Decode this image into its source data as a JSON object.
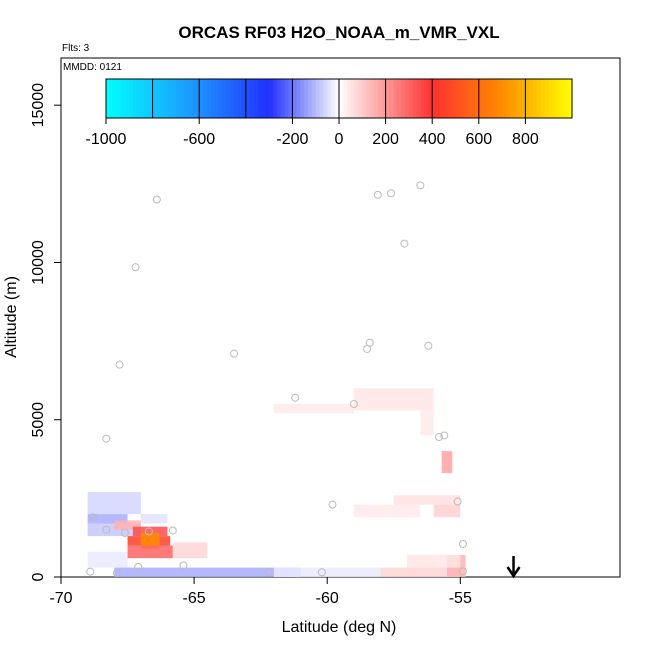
{
  "chart_data": {
    "type": "heatmap",
    "title": "ORCAS RF03 H2O_NOAA_m_VMR_VXL",
    "flights_label": "Flts: 3",
    "date_label": "MMDD: 0121",
    "xlabel": "Latitude (deg N)",
    "ylabel": "Altitude (m)",
    "xlim": [
      -70,
      -49
    ],
    "ylim": [
      0,
      16500
    ],
    "x_ticks": [
      -70,
      -65,
      -60,
      -55
    ],
    "x_tick_labels": [
      "-70",
      "-65",
      "-60",
      "-55"
    ],
    "y_ticks": [
      0,
      5000,
      10000,
      15000
    ],
    "y_tick_labels": [
      "0",
      "5000",
      "10000",
      "15000"
    ],
    "colorbar": {
      "range": [
        -1000,
        1000
      ],
      "ticks": [
        -1000,
        -600,
        -200,
        0,
        200,
        400,
        600,
        800
      ],
      "tick_labels": [
        "-1000",
        "-600",
        "-200",
        "0",
        "200",
        "400",
        "600",
        "800"
      ],
      "boundaries": [
        -1000,
        -800,
        -600,
        -400,
        -200,
        0,
        200,
        400,
        600,
        800,
        1000
      ],
      "colors": {
        "min": "#00ffff",
        "neg_mid": "#1e90ff",
        "neg_strong": "#2030ff",
        "zero": "#ffffff",
        "pos_mid": "#ff3030",
        "pos_strong": "#ff8c00",
        "max": "#ffff00"
      }
    },
    "cells": [
      {
        "x0": -69.0,
        "x1": -67.0,
        "y0": 2000,
        "y1": 2700,
        "v": -60
      },
      {
        "x0": -69.0,
        "x1": -67.5,
        "y0": 1700,
        "y1": 2000,
        "v": -120
      },
      {
        "x0": -69.0,
        "x1": -67.0,
        "y0": 1300,
        "y1": 1700,
        "v": -80
      },
      {
        "x0": -68.0,
        "x1": -67.0,
        "y0": 1500,
        "y1": 1800,
        "v": 150
      },
      {
        "x0": -67.0,
        "x1": -66.0,
        "y0": 1700,
        "y1": 2000,
        "v": -40
      },
      {
        "x0": -67.3,
        "x1": -66.0,
        "y0": 1300,
        "y1": 1600,
        "v": 350
      },
      {
        "x0": -67.5,
        "x1": -65.9,
        "y0": 1000,
        "y1": 1300,
        "v": 450
      },
      {
        "x0": -67.0,
        "x1": -66.3,
        "y0": 900,
        "y1": 1400,
        "v": 700
      },
      {
        "x0": -67.5,
        "x1": -65.8,
        "y0": 600,
        "y1": 1000,
        "v": 300
      },
      {
        "x0": -65.8,
        "x1": -64.5,
        "y0": 600,
        "y1": 1100,
        "v": 80
      },
      {
        "x0": -69.0,
        "x1": -67.5,
        "y0": 300,
        "y1": 800,
        "v": -30
      },
      {
        "x0": -68.0,
        "x1": -61.0,
        "y0": 0,
        "y1": 300,
        "v": -120
      },
      {
        "x0": -62.0,
        "x1": -58.0,
        "y0": 0,
        "y1": 300,
        "v": -30
      },
      {
        "x0": -58.0,
        "x1": -55.0,
        "y0": 0,
        "y1": 300,
        "v": 80
      },
      {
        "x0": -55.5,
        "x1": -54.8,
        "y0": 0,
        "y1": 700,
        "v": 150
      },
      {
        "x0": -57.0,
        "x1": -55.0,
        "y0": 300,
        "y1": 700,
        "v": 50
      },
      {
        "x0": -57.5,
        "x1": -55.0,
        "y0": 2300,
        "y1": 2600,
        "v": 60
      },
      {
        "x0": -56.0,
        "x1": -55.0,
        "y0": 1900,
        "y1": 2300,
        "v": 90
      },
      {
        "x0": -59.0,
        "x1": -56.5,
        "y0": 1900,
        "y1": 2300,
        "v": 40
      },
      {
        "x0": -55.7,
        "x1": -55.3,
        "y0": 3300,
        "y1": 4000,
        "v": 180
      },
      {
        "x0": -62.0,
        "x1": -59.0,
        "y0": 5200,
        "y1": 5500,
        "v": 40
      },
      {
        "x0": -59.0,
        "x1": -56.0,
        "y0": 5300,
        "y1": 6000,
        "v": 50
      },
      {
        "x0": -56.5,
        "x1": -56.0,
        "y0": 4500,
        "y1": 5300,
        "v": 40
      }
    ],
    "points": [
      {
        "x": -68.9,
        "y": 170
      },
      {
        "x": -67.9,
        "y": 130
      },
      {
        "x": -67.1,
        "y": 320
      },
      {
        "x": -68.8,
        "y": 1900
      },
      {
        "x": -68.3,
        "y": 1500
      },
      {
        "x": -67.6,
        "y": 1400
      },
      {
        "x": -66.7,
        "y": 1450
      },
      {
        "x": -65.8,
        "y": 1480
      },
      {
        "x": -65.4,
        "y": 370
      },
      {
        "x": -62.2,
        "y": 150
      },
      {
        "x": -60.2,
        "y": 150
      },
      {
        "x": -59.8,
        "y": 2300
      },
      {
        "x": -55.1,
        "y": 2400
      },
      {
        "x": -54.9,
        "y": 1050
      },
      {
        "x": -54.9,
        "y": 180
      },
      {
        "x": -68.3,
        "y": 4400
      },
      {
        "x": -67.8,
        "y": 6750
      },
      {
        "x": -67.2,
        "y": 9850
      },
      {
        "x": -66.4,
        "y": 12000
      },
      {
        "x": -63.5,
        "y": 7100
      },
      {
        "x": -61.2,
        "y": 5700
      },
      {
        "x": -59.0,
        "y": 5500
      },
      {
        "x": -58.5,
        "y": 7250
      },
      {
        "x": -58.4,
        "y": 7450
      },
      {
        "x": -58.1,
        "y": 12150
      },
      {
        "x": -57.6,
        "y": 12200
      },
      {
        "x": -57.1,
        "y": 10600
      },
      {
        "x": -56.5,
        "y": 12450
      },
      {
        "x": -56.2,
        "y": 7350
      },
      {
        "x": -55.8,
        "y": 4450
      },
      {
        "x": -55.6,
        "y": 4500
      }
    ],
    "arrow_latitude": -53.0
  }
}
